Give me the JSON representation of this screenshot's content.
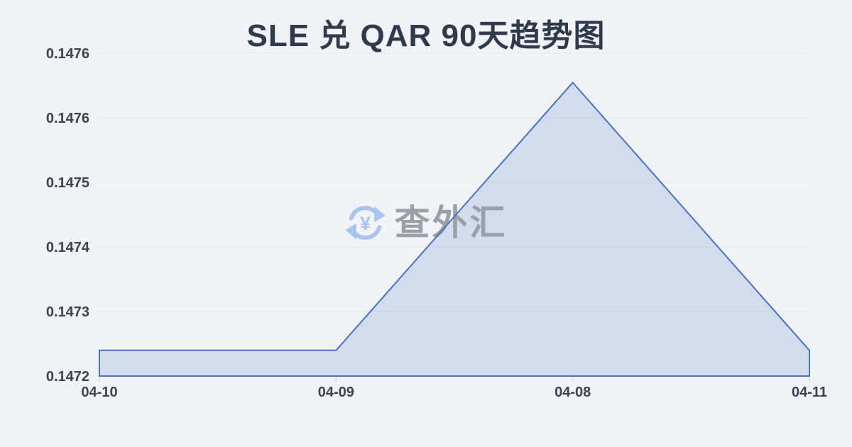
{
  "page": {
    "background": "#f1f3f6"
  },
  "header": {
    "title": "SLE 兑 QAR 90天趋势图",
    "title_color": "#2f3a4d"
  },
  "watermark": {
    "text": "查外汇",
    "yuan": "¥",
    "icon": "currency-exchange-refresh-icon",
    "icon_color": "#a8c4f0",
    "text_color": "#9aa0a8"
  },
  "chart_data": {
    "type": "area",
    "title": "SLE 兑 QAR 90天趋势图",
    "categories": [
      "04-10",
      "04-09",
      "04-08",
      "04-11"
    ],
    "values": [
      0.147235,
      0.147235,
      0.1476,
      0.147235
    ],
    "ylim": [
      0.1472,
      0.14764
    ],
    "y_tick_labels": [
      "0.1472",
      "0.1473",
      "0.1474",
      "0.1475",
      "0.1476",
      "0.1476"
    ],
    "xlabel": "",
    "ylabel": "",
    "grid": true,
    "legend": false,
    "line_color": "#4a72c4",
    "fill_color": "rgba(77,116,198,0.18)",
    "grid_color": "#e4e7ec",
    "tick_color": "#ccd0d6",
    "label_color": "#3a4353"
  }
}
